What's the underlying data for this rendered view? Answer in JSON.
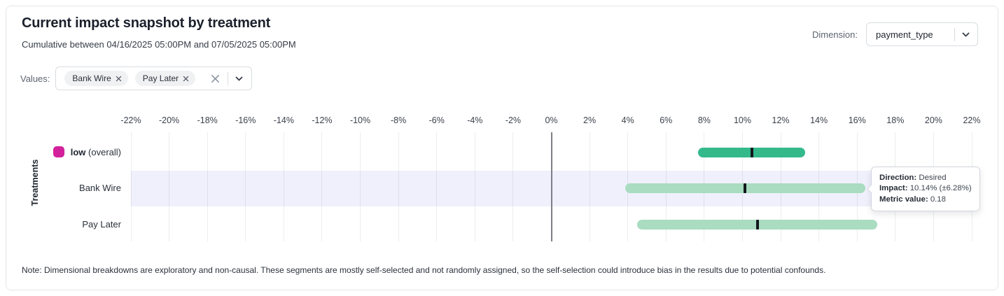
{
  "header": {
    "title": "Current impact snapshot by treatment",
    "subtitle": "Cumulative between 04/16/2025 05:00PM and 07/05/2025 05:00PM",
    "dimension_label": "Dimension:",
    "dimension_value": "payment_type"
  },
  "filters": {
    "values_label": "Values:",
    "chips": [
      "Bank Wire",
      "Pay Later"
    ]
  },
  "icons": {
    "dimension_dropdown": "chevron-down-icon",
    "values_dropdown": "chevron-down-icon",
    "clear_values": "close-icon",
    "chip_remove": "close-icon"
  },
  "chart_data": {
    "type": "bar",
    "variant": "horizontal-confidence-interval",
    "title": "",
    "xlabel": "",
    "ylabel": "Treatments",
    "xlim": [
      -22,
      22
    ],
    "grid": true,
    "x_ticks": [
      "-22%",
      "-20%",
      "-18%",
      "-16%",
      "-14%",
      "-12%",
      "-10%",
      "-8%",
      "-6%",
      "-4%",
      "-2%",
      "0%",
      "2%",
      "4%",
      "6%",
      "8%",
      "10%",
      "12%",
      "14%",
      "16%",
      "18%",
      "20%",
      "22%"
    ],
    "rows": [
      {
        "label": "low",
        "suffix": "(overall)",
        "swatch_color": "#d2219b",
        "impact_pct": 10.48,
        "ci_low_pct": 7.66,
        "ci_high_pct": 13.28,
        "bar_color": "#34b98b",
        "highlighted": false
      },
      {
        "label": "Bank Wire",
        "impact_pct": 10.14,
        "ci_low_pct": 3.86,
        "ci_high_pct": 16.42,
        "bar_color": "#a9dcc0",
        "highlighted": true
      },
      {
        "label": "Pay Later",
        "impact_pct": 10.78,
        "ci_low_pct": 4.5,
        "ci_high_pct": 17.06,
        "bar_color": "#a9dcc0",
        "highlighted": false
      }
    ],
    "marker_color": "#14181d",
    "highlight_band_color": "#f0f0fc",
    "zero_line_color": "#7e7e86"
  },
  "tooltip": {
    "direction_label": "Direction:",
    "direction_value": "Desired",
    "impact_label": "Impact:",
    "impact_value": "10.14% (±6.28%)",
    "metric_label": "Metric value:",
    "metric_value": "0.18"
  },
  "note": "Note: Dimensional breakdowns are exploratory and non-causal. These segments are mostly self-selected and not randomly assigned, so the self-selection could introduce bias in the results due to potential confounds."
}
